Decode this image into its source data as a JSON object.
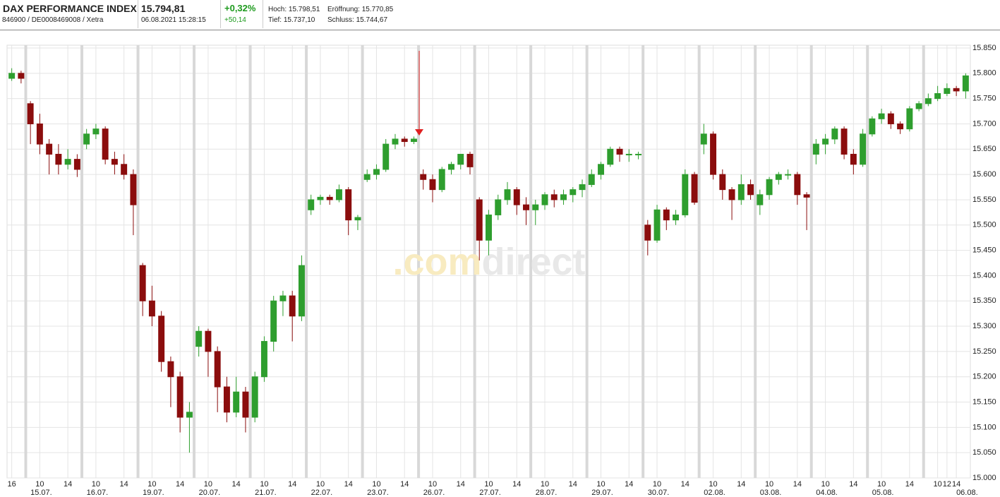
{
  "header": {
    "title": "DAX PERFORMANCE INDEX",
    "ids": "846900 / DE0008469008 / Xetra",
    "price": "15.794,81",
    "timestamp": "06.08.2021 15:28:15",
    "change_pct": "+0,32%",
    "change_abs": "+50,14",
    "high": "Hoch: 15.798,51",
    "open": "Eröffnung: 15.770,85",
    "low": "Tief: 15.737,10",
    "close": "Schluss: 15.744,67"
  },
  "chart_data": {
    "type": "candlestick",
    "watermark": [
      ".com",
      "direct"
    ],
    "up_color": "#2e9e2e",
    "down_color": "#8b0d0d",
    "grid": true,
    "ylim": [
      15000,
      15850
    ],
    "yticks": [
      {
        "value": 15000,
        "label": "15.000"
      },
      {
        "value": 15050,
        "label": "15.050"
      },
      {
        "value": 15100,
        "label": "15.100"
      },
      {
        "value": 15150,
        "label": "15.150"
      },
      {
        "value": 15200,
        "label": "15.200"
      },
      {
        "value": 15250,
        "label": "15.250"
      },
      {
        "value": 15300,
        "label": "15.300"
      },
      {
        "value": 15350,
        "label": "15.350"
      },
      {
        "value": 15400,
        "label": "15.400"
      },
      {
        "value": 15450,
        "label": "15.450"
      },
      {
        "value": 15500,
        "label": "15.500"
      },
      {
        "value": 15550,
        "label": "15.550"
      },
      {
        "value": 15600,
        "label": "15.600"
      },
      {
        "value": 15650,
        "label": "15.650"
      },
      {
        "value": 15700,
        "label": "15.700"
      },
      {
        "value": 15750,
        "label": "15.750"
      },
      {
        "value": 15800,
        "label": "15.800"
      },
      {
        "value": 15850,
        "label": "15.850"
      }
    ],
    "categories": [
      "16",
      null,
      null,
      "10",
      null,
      null,
      "14",
      null,
      null,
      "10",
      null,
      null,
      "14",
      null,
      null,
      "10",
      null,
      null,
      "14",
      null,
      null,
      "10",
      null,
      null,
      "14",
      null,
      null,
      "10",
      null,
      null,
      "14",
      null,
      null,
      "10",
      null,
      null,
      "14",
      null,
      null,
      "10",
      null,
      null,
      "14",
      null,
      null,
      "10",
      null,
      null,
      "14",
      null,
      null,
      "10",
      null,
      null,
      "14",
      null,
      null,
      "10",
      null,
      null,
      "14",
      null,
      null,
      "10",
      null,
      null,
      "14",
      null,
      null,
      "10",
      null,
      null,
      "14",
      null,
      null,
      "10",
      null,
      null,
      "14",
      null,
      null,
      "10",
      null,
      null,
      "14",
      null,
      null,
      "10",
      null,
      null,
      "14",
      null,
      null,
      "10",
      null,
      null,
      "14",
      null,
      null,
      "10",
      "12",
      "14",
      null
    ],
    "dates": [
      null,
      null,
      null,
      "15.07.",
      null,
      null,
      null,
      null,
      null,
      "16.07.",
      null,
      null,
      null,
      null,
      null,
      "19.07.",
      null,
      null,
      null,
      null,
      null,
      "20.07.",
      null,
      null,
      null,
      null,
      null,
      "21.07.",
      null,
      null,
      null,
      null,
      null,
      "22.07.",
      null,
      null,
      null,
      null,
      null,
      "23.07.",
      null,
      null,
      null,
      null,
      null,
      "26.07.",
      null,
      null,
      null,
      null,
      null,
      "27.07.",
      null,
      null,
      null,
      null,
      null,
      "28.07.",
      null,
      null,
      null,
      null,
      null,
      "29.07.",
      null,
      null,
      null,
      null,
      null,
      "30.07.",
      null,
      null,
      null,
      null,
      null,
      "02.08.",
      null,
      null,
      null,
      null,
      null,
      "03.08.",
      null,
      null,
      null,
      null,
      null,
      "04.08.",
      null,
      null,
      null,
      null,
      null,
      "05.08.",
      null,
      null,
      null,
      null,
      null,
      null,
      null,
      null,
      "06.08."
    ],
    "values": [
      [
        15790,
        15810,
        15785,
        15800
      ],
      [
        15800,
        15805,
        15780,
        15790
      ],
      [
        15740,
        15745,
        15660,
        15700
      ],
      [
        15700,
        15720,
        15640,
        15660
      ],
      [
        15660,
        15670,
        15600,
        15640
      ],
      [
        15640,
        15660,
        15600,
        15620
      ],
      [
        15620,
        15650,
        15610,
        15630
      ],
      [
        15630,
        15640,
        15595,
        15610
      ],
      [
        15660,
        15690,
        15650,
        15680
      ],
      [
        15680,
        15700,
        15670,
        15690
      ],
      [
        15690,
        15695,
        15620,
        15630
      ],
      [
        15630,
        15645,
        15600,
        15620
      ],
      [
        15620,
        15640,
        15590,
        15600
      ],
      [
        15600,
        15610,
        15480,
        15540
      ],
      [
        15420,
        15425,
        15320,
        15350
      ],
      [
        15350,
        15380,
        15300,
        15320
      ],
      [
        15320,
        15330,
        15210,
        15230
      ],
      [
        15230,
        15240,
        15140,
        15200
      ],
      [
        15200,
        15210,
        15090,
        15120
      ],
      [
        15120,
        15150,
        15050,
        15130
      ],
      [
        15260,
        15300,
        15240,
        15290
      ],
      [
        15290,
        15295,
        15200,
        15250
      ],
      [
        15250,
        15260,
        15130,
        15180
      ],
      [
        15180,
        15200,
        15110,
        15130
      ],
      [
        15130,
        15200,
        15120,
        15170
      ],
      [
        15170,
        15180,
        15090,
        15120
      ],
      [
        15120,
        15210,
        15110,
        15200
      ],
      [
        15200,
        15280,
        15190,
        15270
      ],
      [
        15270,
        15360,
        15250,
        15350
      ],
      [
        15350,
        15370,
        15320,
        15360
      ],
      [
        15360,
        15370,
        15270,
        15320
      ],
      [
        15320,
        15440,
        15310,
        15420
      ],
      [
        15530,
        15560,
        15520,
        15550
      ],
      [
        15550,
        15560,
        15540,
        15555
      ],
      [
        15555,
        15560,
        15540,
        15550
      ],
      [
        15550,
        15580,
        15545,
        15570
      ],
      [
        15570,
        15575,
        15480,
        15510
      ],
      [
        15510,
        15520,
        15490,
        15515
      ],
      [
        15590,
        15610,
        15585,
        15600
      ],
      [
        15600,
        15620,
        15590,
        15610
      ],
      [
        15610,
        15670,
        15605,
        15660
      ],
      [
        15660,
        15680,
        15650,
        15670
      ],
      [
        15670,
        15675,
        15655,
        15665
      ],
      [
        15665,
        15675,
        15660,
        15670
      ],
      [
        15600,
        15610,
        15570,
        15590
      ],
      [
        15590,
        15600,
        15545,
        15570
      ],
      [
        15570,
        15615,
        15565,
        15610
      ],
      [
        15610,
        15625,
        15600,
        15620
      ],
      [
        15620,
        15640,
        15610,
        15640
      ],
      [
        15640,
        15645,
        15600,
        15615
      ],
      [
        15550,
        15555,
        15430,
        15470
      ],
      [
        15470,
        15530,
        15440,
        15520
      ],
      [
        15520,
        15560,
        15510,
        15550
      ],
      [
        15550,
        15585,
        15540,
        15570
      ],
      [
        15570,
        15575,
        15520,
        15540
      ],
      [
        15540,
        15555,
        15500,
        15530
      ],
      [
        15530,
        15550,
        15500,
        15540
      ],
      [
        15540,
        15565,
        15530,
        15560
      ],
      [
        15560,
        15570,
        15535,
        15550
      ],
      [
        15550,
        15570,
        15540,
        15560
      ],
      [
        15560,
        15575,
        15545,
        15570
      ],
      [
        15570,
        15590,
        15555,
        15580
      ],
      [
        15580,
        15610,
        15575,
        15600
      ],
      [
        15600,
        15625,
        15590,
        15620
      ],
      [
        15620,
        15655,
        15615,
        15650
      ],
      [
        15650,
        15655,
        15625,
        15640
      ],
      [
        15640,
        15650,
        15625,
        15640
      ],
      [
        15640,
        15645,
        15630,
        15640
      ],
      [
        15500,
        15510,
        15440,
        15470
      ],
      [
        15470,
        15540,
        15465,
        15530
      ],
      [
        15530,
        15535,
        15490,
        15510
      ],
      [
        15510,
        15530,
        15500,
        15520
      ],
      [
        15520,
        15610,
        15515,
        15600
      ],
      [
        15600,
        15605,
        15540,
        15545
      ],
      [
        15660,
        15700,
        15640,
        15680
      ],
      [
        15680,
        15685,
        15590,
        15600
      ],
      [
        15600,
        15610,
        15550,
        15570
      ],
      [
        15570,
        15575,
        15510,
        15550
      ],
      [
        15550,
        15600,
        15540,
        15580
      ],
      [
        15580,
        15590,
        15550,
        15560
      ],
      [
        15540,
        15570,
        15520,
        15560
      ],
      [
        15560,
        15595,
        15550,
        15590
      ],
      [
        15590,
        15605,
        15580,
        15600
      ],
      [
        15600,
        15610,
        15590,
        15600
      ],
      [
        15600,
        15605,
        15540,
        15560
      ],
      [
        15560,
        15565,
        15490,
        15555
      ],
      [
        15640,
        15670,
        15620,
        15660
      ],
      [
        15660,
        15680,
        15640,
        15670
      ],
      [
        15670,
        15695,
        15660,
        15690
      ],
      [
        15690,
        15695,
        15630,
        15640
      ],
      [
        15640,
        15650,
        15600,
        15620
      ],
      [
        15620,
        15690,
        15615,
        15680
      ],
      [
        15680,
        15715,
        15675,
        15710
      ],
      [
        15710,
        15730,
        15700,
        15720
      ],
      [
        15720,
        15725,
        15690,
        15700
      ],
      [
        15700,
        15705,
        15680,
        15690
      ],
      [
        15690,
        15735,
        15685,
        15730
      ],
      [
        15730,
        15745,
        15725,
        15740
      ],
      [
        15740,
        15760,
        15735,
        15750
      ],
      [
        15750,
        15775,
        15745,
        15760
      ],
      [
        15760,
        15780,
        15755,
        15770
      ],
      [
        15770,
        15775,
        15755,
        15765
      ],
      [
        15765,
        15800,
        15750,
        15795
      ]
    ]
  }
}
